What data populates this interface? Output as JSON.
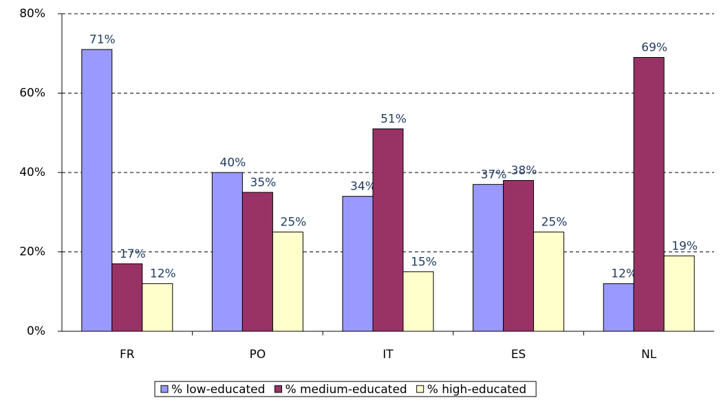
{
  "chart_data": {
    "type": "bar",
    "categories": [
      "FR",
      "PO",
      "IT",
      "ES",
      "NL"
    ],
    "series": [
      {
        "name": "% low-educated",
        "color": "#9999ff",
        "values": [
          71,
          40,
          34,
          37,
          12
        ],
        "value_labels": [
          "71%",
          "40%",
          "34%",
          "37%",
          "12%"
        ]
      },
      {
        "name": "% medium-educated",
        "color": "#993366",
        "values": [
          17,
          35,
          51,
          38,
          69
        ],
        "value_labels": [
          "17%",
          "35%",
          "51%",
          "38%",
          "69%"
        ]
      },
      {
        "name": "% high-educated",
        "color": "#ffffcc",
        "values": [
          12,
          25,
          15,
          25,
          19
        ],
        "value_labels": [
          "12%",
          "25%",
          "15%",
          "25%",
          "19%"
        ]
      }
    ],
    "ylim": [
      0,
      80
    ],
    "yticks": [
      {
        "value": 0,
        "label": "0%"
      },
      {
        "value": 20,
        "label": "20%"
      },
      {
        "value": 40,
        "label": "40%"
      },
      {
        "value": 60,
        "label": "60%"
      },
      {
        "value": 80,
        "label": "80%"
      }
    ],
    "grid": true,
    "legend": "bottom"
  }
}
